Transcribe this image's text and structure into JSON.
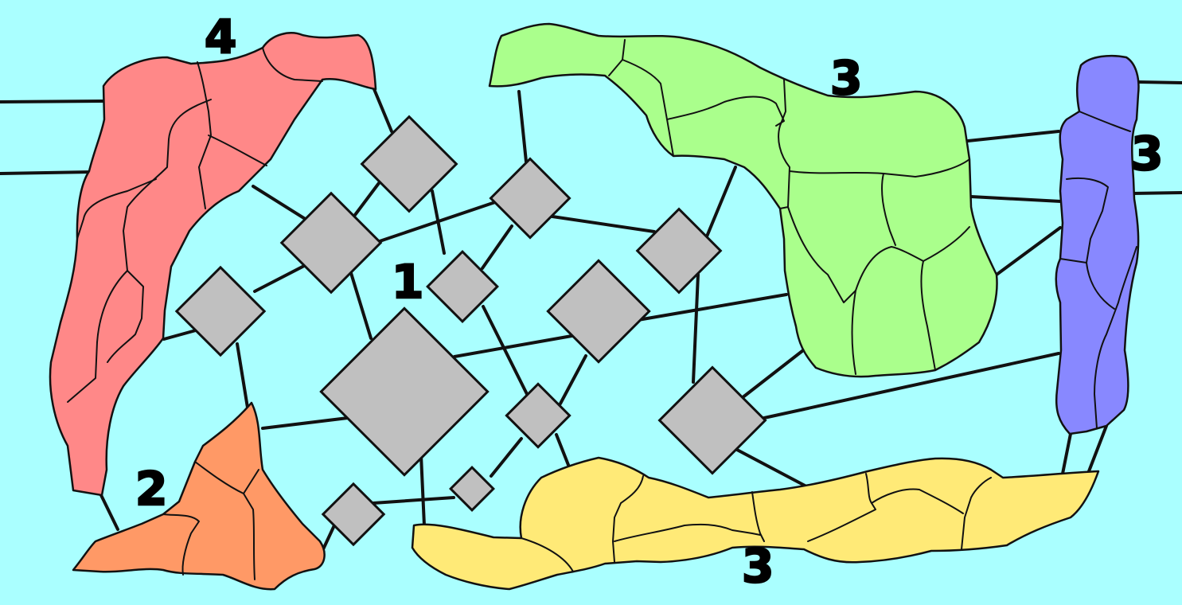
{
  "colors": {
    "background": "#aaffff",
    "node": "#c0c0c0",
    "outline": "#111111"
  },
  "regions": [
    {
      "id": "red",
      "label": "4",
      "color": "#ff8888"
    },
    {
      "id": "orange",
      "label": "2",
      "color": "#ff9966"
    },
    {
      "id": "green",
      "label": "3",
      "color": "#aaff8c"
    },
    {
      "id": "purple",
      "label": "3",
      "color": "#8888ff"
    },
    {
      "id": "yellow",
      "label": "3",
      "color": "#ffea77"
    }
  ],
  "center_label": "1"
}
